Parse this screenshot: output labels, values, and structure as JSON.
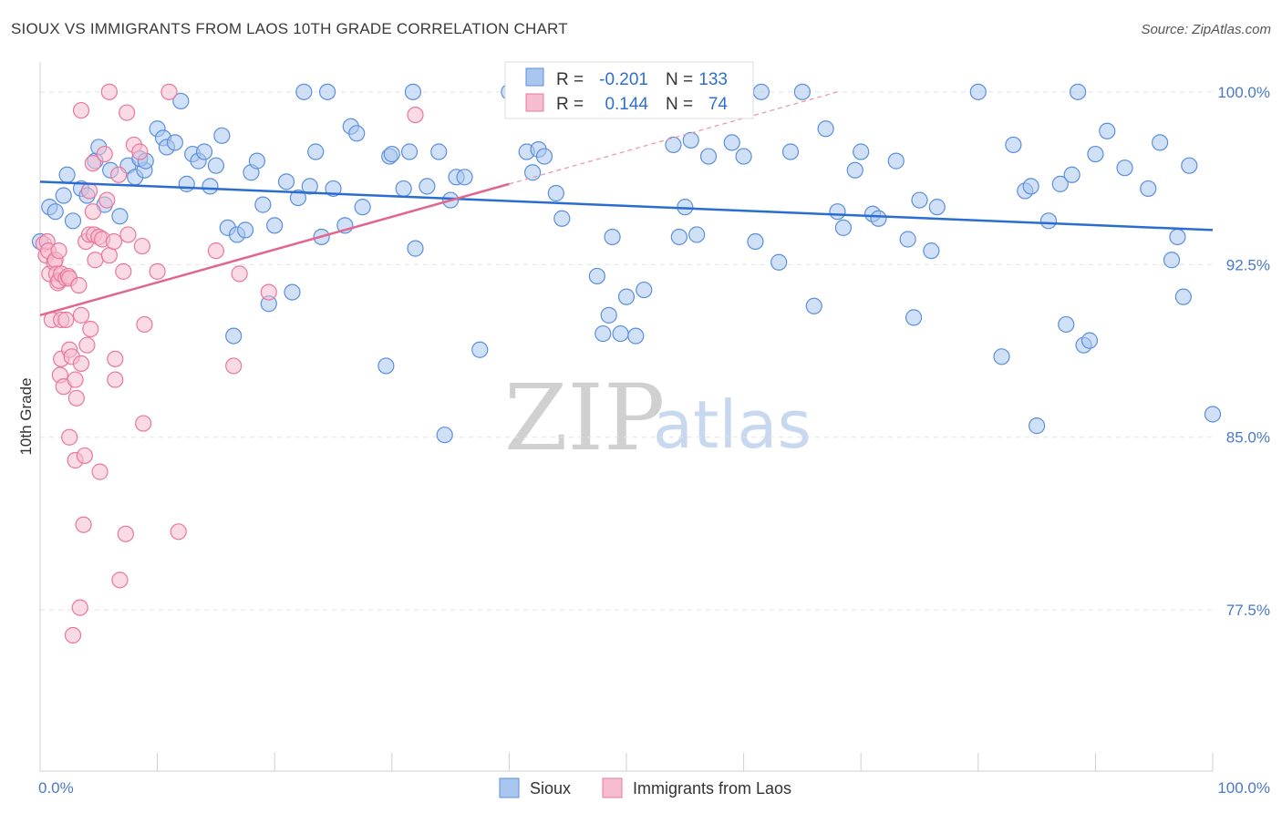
{
  "title": "SIOUX VS IMMIGRANTS FROM LAOS 10TH GRADE CORRELATION CHART",
  "source": "Source: ZipAtlas.com",
  "chart_data": {
    "type": "scatter",
    "xlabel": "",
    "ylabel": "10th Grade",
    "xlim": [
      0,
      100
    ],
    "ylim": [
      70.5,
      101.3
    ],
    "x_tick_labels": [
      {
        "value": 0,
        "label": "0.0%"
      },
      {
        "value": 100,
        "label": "100.0%"
      }
    ],
    "y_tick_labels": [
      {
        "value": 100.0,
        "label": "100.0%"
      },
      {
        "value": 92.5,
        "label": "92.5%"
      },
      {
        "value": 85.0,
        "label": "85.0%"
      },
      {
        "value": 77.5,
        "label": "77.5%"
      }
    ],
    "watermark": {
      "zip": "ZIP",
      "atlas": "atlas"
    },
    "stats": {
      "r_label": "R =",
      "n_label": "N =",
      "rows": [
        {
          "r": "-0.201",
          "n": "133"
        },
        {
          "r": "0.144",
          "n": "74"
        }
      ]
    },
    "series": [
      {
        "name": "Sioux",
        "color": "#5b8fdc",
        "fill": "#a9c6ef",
        "trend": {
          "x0": 0,
          "y0": 96.1,
          "x1": 100,
          "y1": 94.0
        },
        "points": [
          [
            0,
            93.5
          ],
          [
            0.8,
            95
          ],
          [
            1.3,
            94.8
          ],
          [
            2,
            95.5
          ],
          [
            2.3,
            96.4
          ],
          [
            2.8,
            94.4
          ],
          [
            3.5,
            95.8
          ],
          [
            4,
            95.5
          ],
          [
            4.7,
            97
          ],
          [
            5,
            97.6
          ],
          [
            5.5,
            95.1
          ],
          [
            6,
            96.6
          ],
          [
            6.8,
            94.6
          ],
          [
            7.5,
            96.8
          ],
          [
            8.1,
            96.3
          ],
          [
            8.9,
            96.6
          ],
          [
            8.5,
            97.1
          ],
          [
            9,
            97
          ],
          [
            10,
            98.4
          ],
          [
            10.5,
            98
          ],
          [
            10.8,
            97.6
          ],
          [
            11.5,
            97.8
          ],
          [
            12,
            99.6
          ],
          [
            12.5,
            96
          ],
          [
            13,
            97.3
          ],
          [
            13.5,
            97
          ],
          [
            14,
            97.4
          ],
          [
            14.5,
            95.9
          ],
          [
            15,
            96.8
          ],
          [
            15.5,
            98.1
          ],
          [
            16,
            94.1
          ],
          [
            16.5,
            89.4
          ],
          [
            16.8,
            93.8
          ],
          [
            17.5,
            94
          ],
          [
            18,
            96.5
          ],
          [
            18.5,
            97
          ],
          [
            19,
            95.1
          ],
          [
            19.5,
            90.8
          ],
          [
            20,
            94.2
          ],
          [
            21,
            96.1
          ],
          [
            21.5,
            91.3
          ],
          [
            22,
            95.4
          ],
          [
            22.5,
            100
          ],
          [
            23,
            95.9
          ],
          [
            23.5,
            97.4
          ],
          [
            24,
            93.7
          ],
          [
            24.5,
            100
          ],
          [
            25,
            95.8
          ],
          [
            26,
            94.2
          ],
          [
            26.5,
            98.5
          ],
          [
            27,
            98.2
          ],
          [
            27.5,
            95
          ],
          [
            29.5,
            88.1
          ],
          [
            29.8,
            97.2
          ],
          [
            30,
            97.3
          ],
          [
            31,
            95.8
          ],
          [
            31.5,
            97.4
          ],
          [
            31.8,
            100
          ],
          [
            32,
            93.2
          ],
          [
            33,
            95.9
          ],
          [
            34,
            97.4
          ],
          [
            34.5,
            85.1
          ],
          [
            35,
            95.3
          ],
          [
            35.5,
            96.3
          ],
          [
            36.2,
            96.3
          ],
          [
            37.5,
            88.8
          ],
          [
            40,
            100
          ],
          [
            41.5,
            97.4
          ],
          [
            42,
            96.5
          ],
          [
            42.5,
            97.5
          ],
          [
            43,
            97.2
          ],
          [
            44,
            95.6
          ],
          [
            44.5,
            94.5
          ],
          [
            45,
            100
          ],
          [
            46,
            100
          ],
          [
            47.5,
            92
          ],
          [
            48,
            89.5
          ],
          [
            48.5,
            90.3
          ],
          [
            48.8,
            93.7
          ],
          [
            49.5,
            89.5
          ],
          [
            50,
            91.1
          ],
          [
            50.8,
            89.4
          ],
          [
            51.5,
            91.4
          ],
          [
            54,
            97.7
          ],
          [
            54.5,
            93.7
          ],
          [
            55,
            95
          ],
          [
            55.5,
            97.9
          ],
          [
            56,
            93.8
          ],
          [
            57,
            97.2
          ],
          [
            59,
            97.8
          ],
          [
            60,
            97.2
          ],
          [
            61,
            93.5
          ],
          [
            61.5,
            100
          ],
          [
            63,
            92.6
          ],
          [
            64,
            97.4
          ],
          [
            65,
            100
          ],
          [
            66,
            90.7
          ],
          [
            67,
            98.4
          ],
          [
            68,
            94.8
          ],
          [
            68.5,
            94.1
          ],
          [
            69.5,
            96.6
          ],
          [
            70,
            97.4
          ],
          [
            71,
            94.7
          ],
          [
            71.5,
            94.5
          ],
          [
            73,
            97
          ],
          [
            74,
            93.6
          ],
          [
            74.5,
            90.2
          ],
          [
            75,
            95.3
          ],
          [
            76,
            93.1
          ],
          [
            76.5,
            95
          ],
          [
            80,
            100
          ],
          [
            82,
            88.5
          ],
          [
            83,
            97.7
          ],
          [
            84,
            95.7
          ],
          [
            84.5,
            95.9
          ],
          [
            85,
            85.5
          ],
          [
            86,
            94.4
          ],
          [
            87,
            96
          ],
          [
            87.5,
            89.9
          ],
          [
            88,
            96.4
          ],
          [
            88.5,
            100
          ],
          [
            89,
            89
          ],
          [
            89.5,
            89.2
          ],
          [
            90,
            97.3
          ],
          [
            91,
            98.3
          ],
          [
            92.5,
            96.7
          ],
          [
            94.5,
            95.8
          ],
          [
            95.5,
            97.8
          ],
          [
            96.5,
            92.7
          ],
          [
            97,
            93.7
          ],
          [
            97.5,
            91.1
          ],
          [
            98,
            96.8
          ],
          [
            100,
            86
          ]
        ]
      },
      {
        "name": "Immigrants from Laos",
        "color": "#e8789a",
        "fill": "#f6bccf",
        "trend": {
          "x0": 0,
          "y0": 90.3,
          "x1": 40,
          "y1": 96.0
        },
        "trend_dashed": {
          "x0": 40,
          "y0": 96.0,
          "x1": 68,
          "y1": 100.0
        },
        "points": [
          [
            0.3,
            93.4
          ],
          [
            0.5,
            92.9
          ],
          [
            0.6,
            93.5
          ],
          [
            0.7,
            93.1
          ],
          [
            0.8,
            92.1
          ],
          [
            1,
            90.1
          ],
          [
            1.2,
            92.6
          ],
          [
            1.3,
            92.7
          ],
          [
            1.4,
            92.1
          ],
          [
            1.5,
            91.7
          ],
          [
            1.6,
            91.8
          ],
          [
            1.6,
            93.1
          ],
          [
            1.7,
            87.7
          ],
          [
            1.8,
            90.1
          ],
          [
            1.8,
            92.1
          ],
          [
            1.8,
            88.4
          ],
          [
            2,
            87.2
          ],
          [
            2.2,
            90.1
          ],
          [
            2.2,
            91.9
          ],
          [
            2.4,
            92
          ],
          [
            2.5,
            88.8
          ],
          [
            2.5,
            85
          ],
          [
            2.5,
            91.9
          ],
          [
            2.7,
            88.5
          ],
          [
            2.8,
            76.4
          ],
          [
            3,
            84
          ],
          [
            3,
            87.5
          ],
          [
            3.1,
            86.7
          ],
          [
            3.3,
            91.6
          ],
          [
            3.4,
            77.6
          ],
          [
            3.5,
            90.3
          ],
          [
            3.5,
            88.2
          ],
          [
            3.5,
            99.2
          ],
          [
            3.7,
            81.2
          ],
          [
            3.8,
            84.2
          ],
          [
            3.9,
            93.5
          ],
          [
            4,
            89
          ],
          [
            4.2,
            93.8
          ],
          [
            4.2,
            95.7
          ],
          [
            4.3,
            89.7
          ],
          [
            4.5,
            94.8
          ],
          [
            4.5,
            96.9
          ],
          [
            4.6,
            93.8
          ],
          [
            4.7,
            92.7
          ],
          [
            5,
            93.7
          ],
          [
            5.1,
            83.5
          ],
          [
            5.3,
            93.6
          ],
          [
            5.5,
            97.3
          ],
          [
            5.7,
            95.3
          ],
          [
            5.9,
            92.9
          ],
          [
            5.9,
            100
          ],
          [
            6.3,
            93.5
          ],
          [
            6.4,
            87.5
          ],
          [
            6.4,
            88.4
          ],
          [
            6.7,
            96.4
          ],
          [
            6.8,
            78.8
          ],
          [
            7.1,
            92.2
          ],
          [
            7.3,
            80.8
          ],
          [
            7.4,
            99.1
          ],
          [
            7.5,
            93.8
          ],
          [
            8,
            97.7
          ],
          [
            8.5,
            97.4
          ],
          [
            8.7,
            93.3
          ],
          [
            8.8,
            85.6
          ],
          [
            8.9,
            89.9
          ],
          [
            10,
            92.2
          ],
          [
            11,
            100
          ],
          [
            11.8,
            80.9
          ],
          [
            15,
            93.1
          ],
          [
            16.5,
            88.1
          ],
          [
            17,
            92.1
          ],
          [
            19.5,
            91.3
          ],
          [
            32,
            99
          ]
        ]
      }
    ],
    "legend": [
      "Sioux",
      "Immigrants from Laos"
    ]
  }
}
